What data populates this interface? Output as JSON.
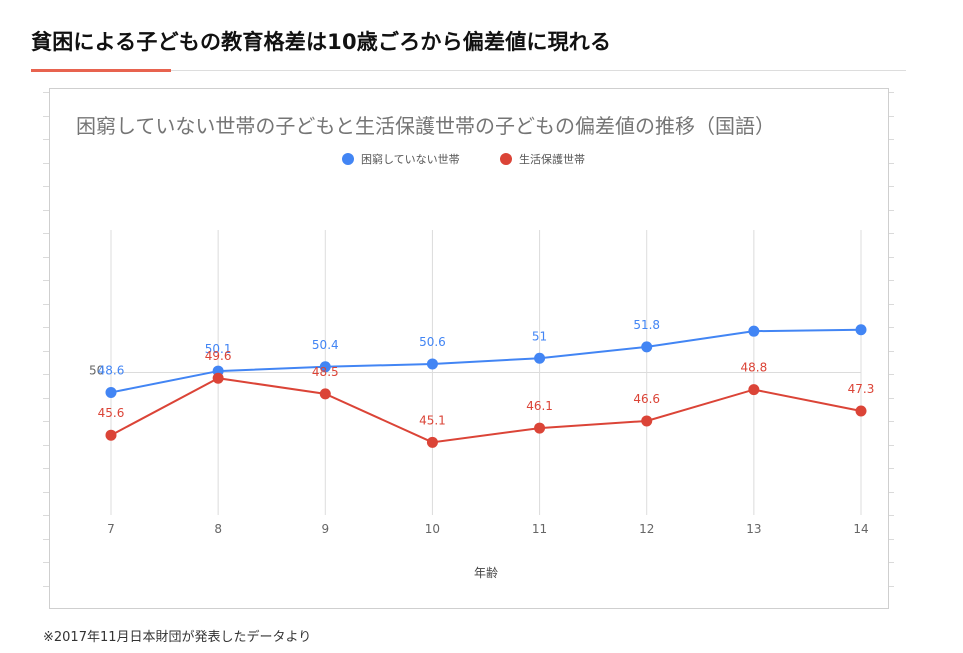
{
  "headline": "貧困による子どもの教育格差は10歳ごろから偏差値に現れる",
  "footnote": "※2017年11月日本財団が発表したデータより",
  "chart_data": {
    "type": "line",
    "title": "困窮していない世帯の子どもと生活保護世帯の子どもの偏差値の推移（国語）",
    "xlabel": "年齢",
    "ylabel": "",
    "x": [
      7,
      8,
      9,
      10,
      11,
      12,
      13,
      14
    ],
    "x_tick_labels": [
      "7",
      "8",
      "9",
      "10",
      "11",
      "12",
      "13",
      "14"
    ],
    "y_tick_labels": [
      {
        "value": 50,
        "label": "50"
      }
    ],
    "ylim": [
      40,
      60
    ],
    "grid": true,
    "legend_position": "top-center",
    "series": [
      {
        "name": "困窮していない世帯",
        "color": "#4285f4",
        "values": [
          48.6,
          50.1,
          50.4,
          50.6,
          51,
          51.8,
          52.9,
          53
        ],
        "labels": [
          "48.6",
          "50.1",
          "50.4",
          "50.6",
          "51",
          "51.8",
          "",
          ""
        ]
      },
      {
        "name": "生活保護世帯",
        "color": "#db4437",
        "values": [
          45.6,
          49.6,
          48.5,
          45.1,
          46.1,
          46.6,
          48.8,
          47.3
        ],
        "labels": [
          "45.6",
          "49.6",
          "48.5",
          "45.1",
          "46.1",
          "46.6",
          "48.8",
          "47.3"
        ]
      }
    ]
  }
}
